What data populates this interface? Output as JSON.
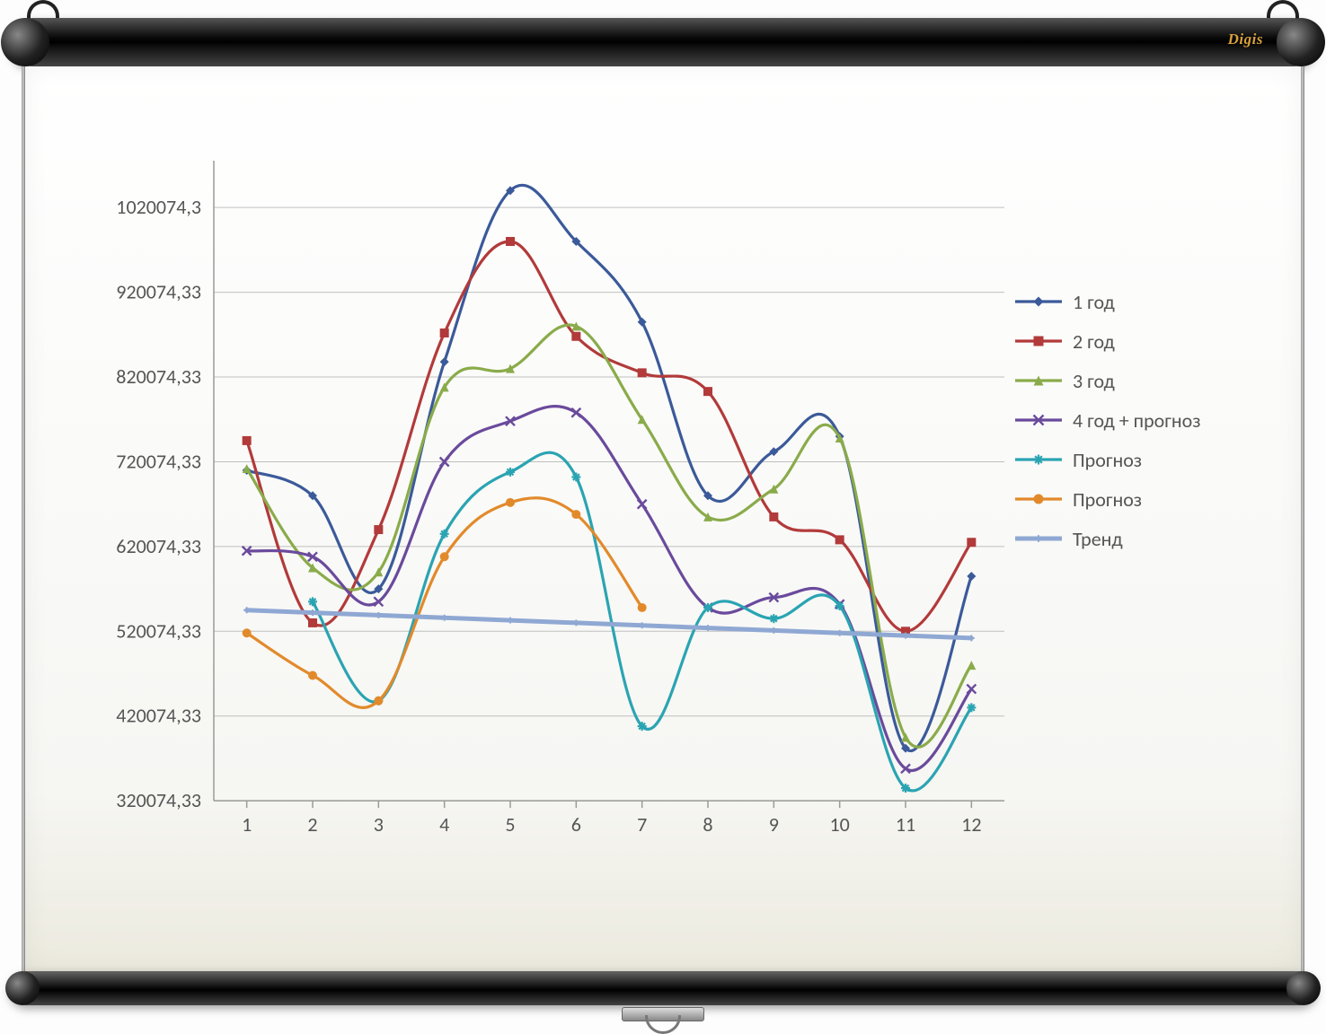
{
  "brand_label": "Digis",
  "chart": {
    "type": "line-smooth",
    "background_color": "#ffffff",
    "grid_color": "#bfbfbf",
    "axis_color": "#9a9a98",
    "label_color": "#595959",
    "label_fontsize": 22,
    "x_categories": [
      "1",
      "2",
      "3",
      "4",
      "5",
      "6",
      "7",
      "8",
      "9",
      "10",
      "11",
      "12"
    ],
    "y_ticks": [
      "320074,33",
      "420074,33",
      "520074,33",
      "620074,33",
      "720074,33",
      "820074,33",
      "920074,33",
      "1020074,3"
    ],
    "ylim": [
      320074.33,
      1070074.33
    ],
    "ytick_step": 100000,
    "line_width": 3.2,
    "marker_size": 10,
    "series": [
      {
        "key": "year1",
        "label": "1 год",
        "color": "#3b5a9a",
        "marker": "diamond",
        "data": [
          710000,
          680000,
          570000,
          838000,
          1040000,
          980000,
          885000,
          680000,
          732000,
          750000,
          382000,
          585000
        ]
      },
      {
        "key": "year2",
        "label": "2 год",
        "color": "#b23a3a",
        "marker": "square",
        "data": [
          745000,
          530000,
          640000,
          872000,
          980000,
          868000,
          825000,
          803000,
          655000,
          628000,
          520074,
          625000
        ]
      },
      {
        "key": "year3",
        "label": "3 год",
        "color": "#8aab4a",
        "marker": "triangle",
        "data": [
          712000,
          595000,
          590000,
          808000,
          830000,
          880000,
          770000,
          655000,
          688000,
          748000,
          395000,
          480000
        ]
      },
      {
        "key": "year4",
        "label": "4 год + прогноз",
        "color": "#6a4a9c",
        "marker": "x",
        "data": [
          615000,
          608000,
          555000,
          720000,
          768000,
          778000,
          670000,
          548000,
          560000,
          552000,
          358000,
          452000
        ]
      },
      {
        "key": "forecast1",
        "label": "Прогноз",
        "color": "#2aa4b2",
        "marker": "asterisk",
        "data": [
          null,
          555000,
          438000,
          635000,
          708000,
          702000,
          408000,
          548000,
          535000,
          550000,
          335000,
          430000
        ]
      },
      {
        "key": "forecast2",
        "label": "Прогноз",
        "color": "#e28a2b",
        "marker": "circle",
        "data": [
          518000,
          468000,
          438000,
          608000,
          672000,
          658000,
          548000,
          null,
          null,
          null,
          null,
          null
        ]
      },
      {
        "key": "trend",
        "label": "Тренд",
        "color": "#8fa8d3",
        "marker": "plus-small",
        "line_width": 5,
        "data": [
          545000,
          542000,
          539000,
          536000,
          533000,
          530000,
          527000,
          524000,
          521000,
          518000,
          515000,
          512000
        ]
      }
    ]
  },
  "legend_items": [
    {
      "label": "1 год",
      "color": "#3b5a9a",
      "marker": "diamond"
    },
    {
      "label": "2 год",
      "color": "#b23a3a",
      "marker": "square"
    },
    {
      "label": "3 год",
      "color": "#8aab4a",
      "marker": "triangle"
    },
    {
      "label": "4 год + прогноз",
      "color": "#6a4a9c",
      "marker": "x"
    },
    {
      "label": "Прогноз",
      "color": "#2aa4b2",
      "marker": "asterisk"
    },
    {
      "label": "Прогноз",
      "color": "#e28a2b",
      "marker": "circle"
    },
    {
      "label": "Тренд",
      "color": "#8fa8d3",
      "marker": "plus-small"
    }
  ]
}
